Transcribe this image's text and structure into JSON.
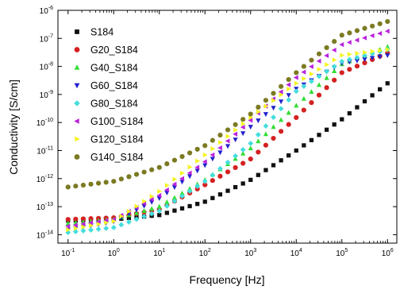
{
  "chart_data": {
    "type": "scatter",
    "xlabel": "Frequency [Hz]",
    "ylabel": "Conductivity [S/cm]",
    "xscale": "log",
    "yscale": "log",
    "xlim": [
      0.06,
      1600000.0
    ],
    "ylim": [
      5e-15,
      1e-06
    ],
    "x_ticks": [
      {
        "value": 0.1,
        "base": "10",
        "exp": "-1"
      },
      {
        "value": 1,
        "base": "10",
        "exp": "0"
      },
      {
        "value": 10,
        "base": "10",
        "exp": "1"
      },
      {
        "value": 100,
        "base": "10",
        "exp": "2"
      },
      {
        "value": 1000,
        "base": "10",
        "exp": "3"
      },
      {
        "value": 10000,
        "base": "10",
        "exp": "4"
      },
      {
        "value": 100000,
        "base": "10",
        "exp": "5"
      },
      {
        "value": 1000000,
        "base": "10",
        "exp": "6"
      }
    ],
    "y_ticks": [
      {
        "value": 1e-14,
        "base": "10",
        "exp": "-14"
      },
      {
        "value": 1e-13,
        "base": "10",
        "exp": "-13"
      },
      {
        "value": 1e-12,
        "base": "10",
        "exp": "-12"
      },
      {
        "value": 1e-11,
        "base": "10",
        "exp": "-11"
      },
      {
        "value": 1e-10,
        "base": "10",
        "exp": "-10"
      },
      {
        "value": 1e-09,
        "base": "10",
        "exp": "-9"
      },
      {
        "value": 1e-08,
        "base": "10",
        "exp": "-8"
      },
      {
        "value": 1e-07,
        "base": "10",
        "exp": "-7"
      },
      {
        "value": 1e-06,
        "base": "10",
        "exp": "-6"
      }
    ],
    "legend_position": "top-left",
    "grid": false,
    "series": [
      {
        "name": "S184",
        "marker": "square",
        "color": "#111111",
        "x": [
          0.1,
          1,
          10,
          100,
          1000,
          10000,
          100000,
          1000000
        ],
        "y": [
          3.2e-14,
          3.5e-14,
          5e-14,
          1.5e-13,
          9e-13,
          1e-11,
          1.3e-10,
          2.5e-09
        ]
      },
      {
        "name": "G20_S184",
        "marker": "circle",
        "color": "#d42121",
        "x": [
          0.1,
          1,
          10,
          100,
          1000,
          10000,
          100000,
          1000000
        ],
        "y": [
          3.5e-14,
          4e-14,
          8e-14,
          6e-13,
          5e-12,
          1.5e-10,
          6e-09,
          3e-08
        ]
      },
      {
        "name": "G40_S184",
        "marker": "triangle-up",
        "color": "#33dd33",
        "x": [
          0.1,
          1,
          10,
          100,
          1000,
          10000,
          100000,
          1000000
        ],
        "y": [
          2.5e-14,
          3.5e-14,
          1e-13,
          9e-13,
          1.2e-11,
          4e-10,
          1.2e-08,
          5e-08
        ]
      },
      {
        "name": "G60_S184",
        "marker": "triangle-down",
        "color": "#2222cc",
        "x": [
          0.1,
          1,
          10,
          100,
          1000,
          10000,
          100000,
          1000000
        ],
        "y": [
          1.5e-14,
          3e-14,
          2e-13,
          3e-12,
          7e-11,
          1.6e-09,
          1.3e-08,
          2.5e-08
        ]
      },
      {
        "name": "G80_S184",
        "marker": "diamond",
        "color": "#44dddd",
        "x": [
          0.1,
          1,
          10,
          100,
          1000,
          10000,
          100000,
          1000000
        ],
        "y": [
          1.2e-14,
          1.8e-14,
          7e-14,
          8e-13,
          1.8e-11,
          1.3e-09,
          1.5e-08,
          4e-08
        ]
      },
      {
        "name": "G100_S184",
        "marker": "triangle-left",
        "color": "#bb22dd",
        "x": [
          0.1,
          1,
          10,
          100,
          1000,
          10000,
          100000,
          1000000
        ],
        "y": [
          2e-14,
          3.5e-14,
          2.5e-13,
          4e-12,
          1.2e-10,
          4e-09,
          6e-08,
          1.8e-07
        ]
      },
      {
        "name": "G120_S184",
        "marker": "triangle-right",
        "color": "#f4f422",
        "x": [
          0.1,
          1,
          10,
          100,
          1000,
          10000,
          100000,
          1000000
        ],
        "y": [
          1.5e-14,
          3e-14,
          3.5e-13,
          7e-12,
          1.5e-10,
          2.5e-09,
          2.5e-08,
          4e-08
        ]
      },
      {
        "name": "G140_S184",
        "marker": "circle",
        "color": "#7c7a22",
        "x": [
          0.1,
          1,
          10,
          100,
          1000,
          10000,
          100000,
          1000000
        ],
        "y": [
          5e-13,
          8e-13,
          2.5e-12,
          1.5e-11,
          2e-10,
          6e-09,
          1.3e-07,
          4e-07
        ]
      }
    ]
  }
}
